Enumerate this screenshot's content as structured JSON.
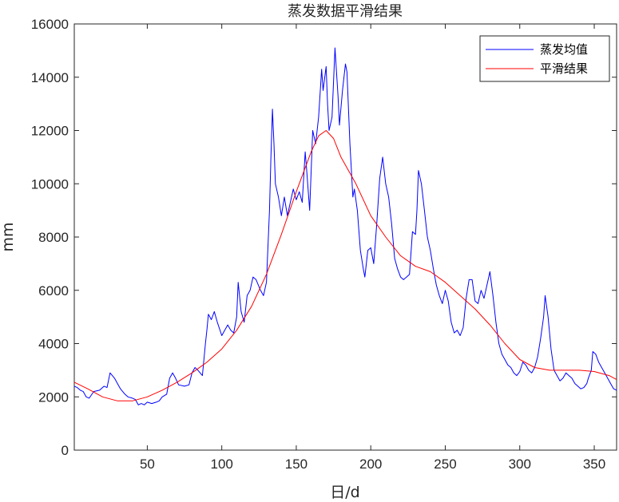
{
  "chart_data": {
    "type": "line",
    "title": "蒸发数据平滑结果",
    "xlabel": "日/d",
    "ylabel": "mm",
    "xlim": [
      1,
      365
    ],
    "ylim": [
      0,
      16000
    ],
    "xticks": [
      50,
      100,
      150,
      200,
      250,
      300,
      350
    ],
    "yticks": [
      0,
      2000,
      4000,
      6000,
      8000,
      10000,
      12000,
      14000,
      16000
    ],
    "grid": false,
    "legend_position": "top-right",
    "series": [
      {
        "name": "蒸发均值",
        "color": "#0000ff",
        "points": [
          [
            1,
            2400
          ],
          [
            3,
            2350
          ],
          [
            5,
            2250
          ],
          [
            7,
            2200
          ],
          [
            9,
            2000
          ],
          [
            11,
            1950
          ],
          [
            14,
            2200
          ],
          [
            18,
            2250
          ],
          [
            21,
            2400
          ],
          [
            23,
            2350
          ],
          [
            25,
            2900
          ],
          [
            28,
            2700
          ],
          [
            30,
            2500
          ],
          [
            32,
            2300
          ],
          [
            35,
            2100
          ],
          [
            37,
            2000
          ],
          [
            40,
            1950
          ],
          [
            42,
            1900
          ],
          [
            44,
            1700
          ],
          [
            46,
            1750
          ],
          [
            48,
            1700
          ],
          [
            50,
            1800
          ],
          [
            53,
            1750
          ],
          [
            56,
            1800
          ],
          [
            58,
            1850
          ],
          [
            60,
            2000
          ],
          [
            63,
            2100
          ],
          [
            65,
            2700
          ],
          [
            67,
            2900
          ],
          [
            69,
            2700
          ],
          [
            71,
            2450
          ],
          [
            75,
            2400
          ],
          [
            78,
            2450
          ],
          [
            80,
            2900
          ],
          [
            82,
            3100
          ],
          [
            84,
            3000
          ],
          [
            87,
            2800
          ],
          [
            89,
            4000
          ],
          [
            90,
            4500
          ],
          [
            91,
            5100
          ],
          [
            93,
            4900
          ],
          [
            95,
            5200
          ],
          [
            97,
            4800
          ],
          [
            100,
            4300
          ],
          [
            102,
            4500
          ],
          [
            104,
            4700
          ],
          [
            106,
            4500
          ],
          [
            108,
            4400
          ],
          [
            110,
            5000
          ],
          [
            111,
            6300
          ],
          [
            113,
            5200
          ],
          [
            115,
            4800
          ],
          [
            117,
            5800
          ],
          [
            119,
            6000
          ],
          [
            121,
            6500
          ],
          [
            123,
            6400
          ],
          [
            126,
            6000
          ],
          [
            128,
            5800
          ],
          [
            130,
            6300
          ],
          [
            132,
            9000
          ],
          [
            133,
            11000
          ],
          [
            134,
            12800
          ],
          [
            135,
            11500
          ],
          [
            136,
            10000
          ],
          [
            138,
            9500
          ],
          [
            140,
            8800
          ],
          [
            142,
            9500
          ],
          [
            144,
            8800
          ],
          [
            146,
            9300
          ],
          [
            148,
            9800
          ],
          [
            150,
            9400
          ],
          [
            152,
            9700
          ],
          [
            154,
            9300
          ],
          [
            156,
            11200
          ],
          [
            157,
            10500
          ],
          [
            159,
            9000
          ],
          [
            161,
            12000
          ],
          [
            163,
            11500
          ],
          [
            165,
            12500
          ],
          [
            167,
            14300
          ],
          [
            168,
            13500
          ],
          [
            170,
            14400
          ],
          [
            171,
            13000
          ],
          [
            172,
            12000
          ],
          [
            174,
            12500
          ],
          [
            176,
            15100
          ],
          [
            178,
            13300
          ],
          [
            179,
            12200
          ],
          [
            181,
            13500
          ],
          [
            183,
            14500
          ],
          [
            184,
            14200
          ],
          [
            186,
            11500
          ],
          [
            188,
            9500
          ],
          [
            189,
            9800
          ],
          [
            191,
            9000
          ],
          [
            193,
            7500
          ],
          [
            195,
            6800
          ],
          [
            196,
            6500
          ],
          [
            198,
            7500
          ],
          [
            200,
            7600
          ],
          [
            202,
            7000
          ],
          [
            204,
            8500
          ],
          [
            206,
            10200
          ],
          [
            208,
            11000
          ],
          [
            210,
            10000
          ],
          [
            212,
            9500
          ],
          [
            214,
            8500
          ],
          [
            216,
            7200
          ],
          [
            218,
            6800
          ],
          [
            220,
            6500
          ],
          [
            222,
            6400
          ],
          [
            224,
            6500
          ],
          [
            226,
            6600
          ],
          [
            228,
            8200
          ],
          [
            230,
            8100
          ],
          [
            231,
            9000
          ],
          [
            232,
            10500
          ],
          [
            234,
            10000
          ],
          [
            236,
            9000
          ],
          [
            238,
            8000
          ],
          [
            240,
            7500
          ],
          [
            242,
            6800
          ],
          [
            244,
            6200
          ],
          [
            246,
            5800
          ],
          [
            248,
            5500
          ],
          [
            250,
            6000
          ],
          [
            252,
            5600
          ],
          [
            254,
            4800
          ],
          [
            256,
            4400
          ],
          [
            258,
            4500
          ],
          [
            260,
            4300
          ],
          [
            262,
            4600
          ],
          [
            264,
            5700
          ],
          [
            266,
            6400
          ],
          [
            268,
            6400
          ],
          [
            270,
            5600
          ],
          [
            272,
            5500
          ],
          [
            274,
            6000
          ],
          [
            276,
            5700
          ],
          [
            278,
            6200
          ],
          [
            280,
            6700
          ],
          [
            282,
            5800
          ],
          [
            284,
            4800
          ],
          [
            286,
            4000
          ],
          [
            288,
            3600
          ],
          [
            290,
            3400
          ],
          [
            292,
            3200
          ],
          [
            294,
            3100
          ],
          [
            296,
            2900
          ],
          [
            298,
            2800
          ],
          [
            300,
            2950
          ],
          [
            302,
            3300
          ],
          [
            304,
            3200
          ],
          [
            306,
            3000
          ],
          [
            308,
            2900
          ],
          [
            310,
            3100
          ],
          [
            312,
            3500
          ],
          [
            314,
            4200
          ],
          [
            316,
            5000
          ],
          [
            317,
            5800
          ],
          [
            319,
            5000
          ],
          [
            321,
            3800
          ],
          [
            323,
            3000
          ],
          [
            325,
            2800
          ],
          [
            327,
            2600
          ],
          [
            329,
            2700
          ],
          [
            331,
            2900
          ],
          [
            333,
            2800
          ],
          [
            335,
            2700
          ],
          [
            337,
            2500
          ],
          [
            339,
            2400
          ],
          [
            341,
            2300
          ],
          [
            343,
            2350
          ],
          [
            345,
            2500
          ],
          [
            346,
            2700
          ],
          [
            348,
            3000
          ],
          [
            349,
            3700
          ],
          [
            351,
            3600
          ],
          [
            353,
            3300
          ],
          [
            355,
            3100
          ],
          [
            357,
            2900
          ],
          [
            359,
            2700
          ],
          [
            361,
            2500
          ],
          [
            363,
            2300
          ],
          [
            365,
            2250
          ]
        ]
      },
      {
        "name": "平滑结果",
        "color": "#ff0000",
        "points": [
          [
            1,
            2550
          ],
          [
            10,
            2300
          ],
          [
            20,
            2000
          ],
          [
            30,
            1850
          ],
          [
            40,
            1850
          ],
          [
            50,
            2000
          ],
          [
            60,
            2250
          ],
          [
            70,
            2550
          ],
          [
            80,
            2900
          ],
          [
            90,
            3300
          ],
          [
            100,
            3800
          ],
          [
            110,
            4500
          ],
          [
            120,
            5400
          ],
          [
            130,
            6600
          ],
          [
            140,
            8100
          ],
          [
            150,
            9700
          ],
          [
            160,
            11200
          ],
          [
            165,
            11800
          ],
          [
            170,
            12000
          ],
          [
            175,
            11700
          ],
          [
            180,
            11000
          ],
          [
            190,
            10000
          ],
          [
            200,
            8800
          ],
          [
            210,
            8000
          ],
          [
            220,
            7300
          ],
          [
            230,
            6900
          ],
          [
            240,
            6700
          ],
          [
            250,
            6300
          ],
          [
            260,
            5800
          ],
          [
            270,
            5300
          ],
          [
            280,
            4700
          ],
          [
            290,
            4000
          ],
          [
            300,
            3400
          ],
          [
            310,
            3100
          ],
          [
            320,
            3000
          ],
          [
            330,
            3000
          ],
          [
            340,
            3000
          ],
          [
            350,
            2950
          ],
          [
            360,
            2800
          ],
          [
            365,
            2650
          ]
        ]
      }
    ]
  }
}
